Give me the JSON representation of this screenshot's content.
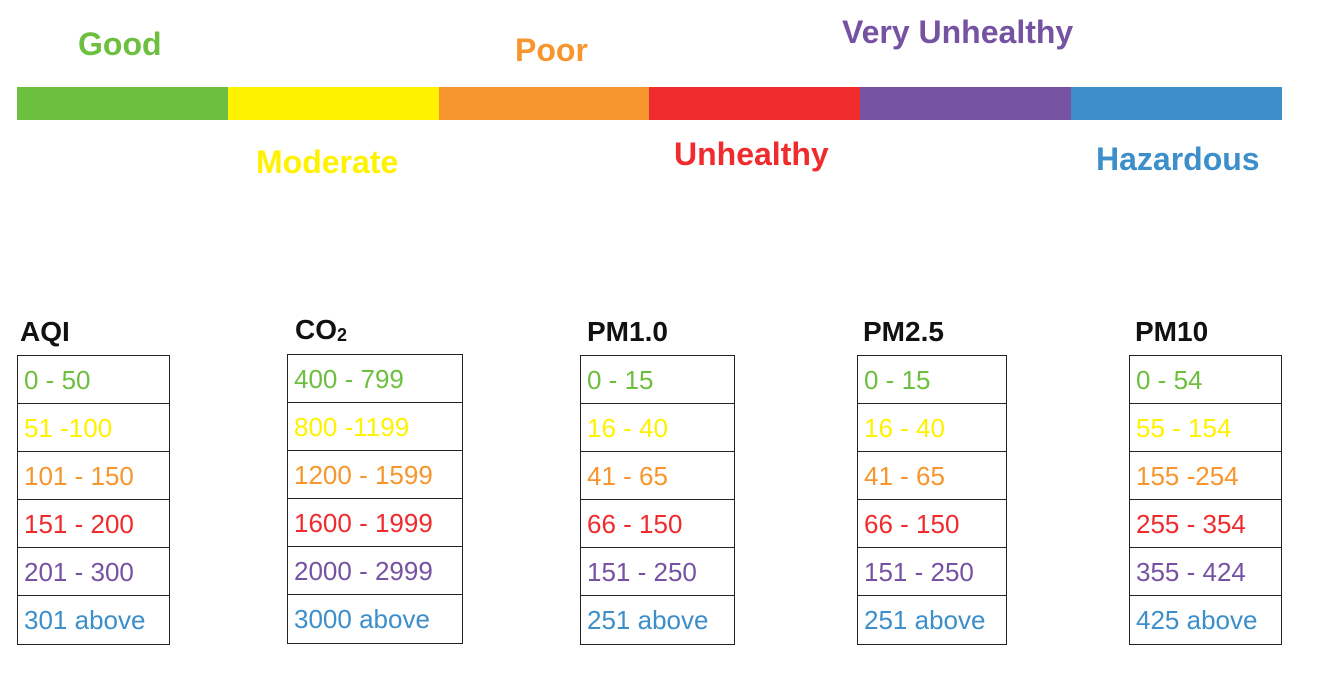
{
  "colors": {
    "good": "#6cbf3f",
    "moderate": "#fff200",
    "poor": "#f7962e",
    "unhealthy": "#ef2b2d",
    "very_unhealthy": "#7553a2",
    "hazardous": "#3c8fca"
  },
  "levels": {
    "good": "Good",
    "moderate": "Moderate",
    "poor": "Poor",
    "unhealthy": "Unhealthy",
    "very_unhealthy": "Very Unhealthy",
    "hazardous": "Hazardous"
  },
  "tables": {
    "aqi": {
      "title": "AQI",
      "rows": [
        "0 - 50",
        "51 -100",
        "101 - 150",
        "151 - 200",
        "201 - 300",
        "301 above"
      ]
    },
    "co2": {
      "title": "CO",
      "title_sub": "2",
      "rows": [
        "400 - 799",
        "800 -1199",
        "1200 - 1599",
        "1600 - 1999",
        "2000 - 2999",
        "3000 above"
      ]
    },
    "pm1": {
      "title": "PM1.0",
      "rows": [
        "0 - 15",
        "16 - 40",
        "41 - 65",
        "66 - 150",
        "151 - 250",
        "251 above"
      ]
    },
    "pm25": {
      "title": "PM2.5",
      "rows": [
        "0 - 15",
        "16 - 40",
        "41 - 65",
        "66 - 150",
        "151 - 250",
        "251 above"
      ]
    },
    "pm10": {
      "title": "PM10",
      "rows": [
        "0 - 54",
        "55 - 154",
        "155 -254",
        "255 - 354",
        "355 - 424",
        "425 above"
      ]
    }
  }
}
